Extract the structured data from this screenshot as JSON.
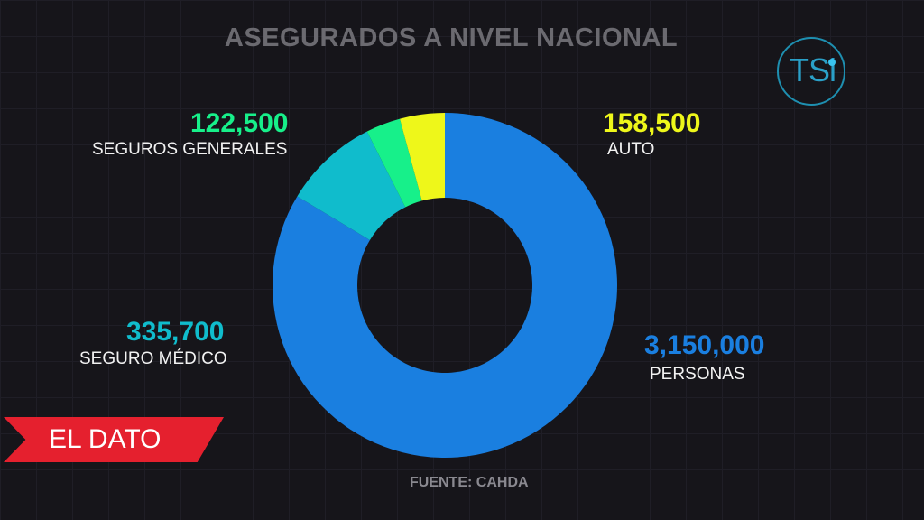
{
  "title": "ASEGURADOS A NIVEL NACIONAL",
  "source": "FUENTE: CAHDA",
  "logo_text": "TSi",
  "badge_text": "EL DATO",
  "chart_data": {
    "type": "pie",
    "donut": true,
    "title": "ASEGURADOS A NIVEL NACIONAL",
    "categories": [
      "PERSONAS",
      "SEGURO MÉDICO",
      "SEGUROS GENERALES",
      "AUTO"
    ],
    "values": [
      3150000,
      335700,
      122500,
      158500
    ],
    "value_labels": [
      "3,150,000",
      "335,700",
      "122,500",
      "158,500"
    ],
    "colors": [
      "#1a7fe0",
      "#10bccc",
      "#17f08a",
      "#eef71a"
    ]
  }
}
